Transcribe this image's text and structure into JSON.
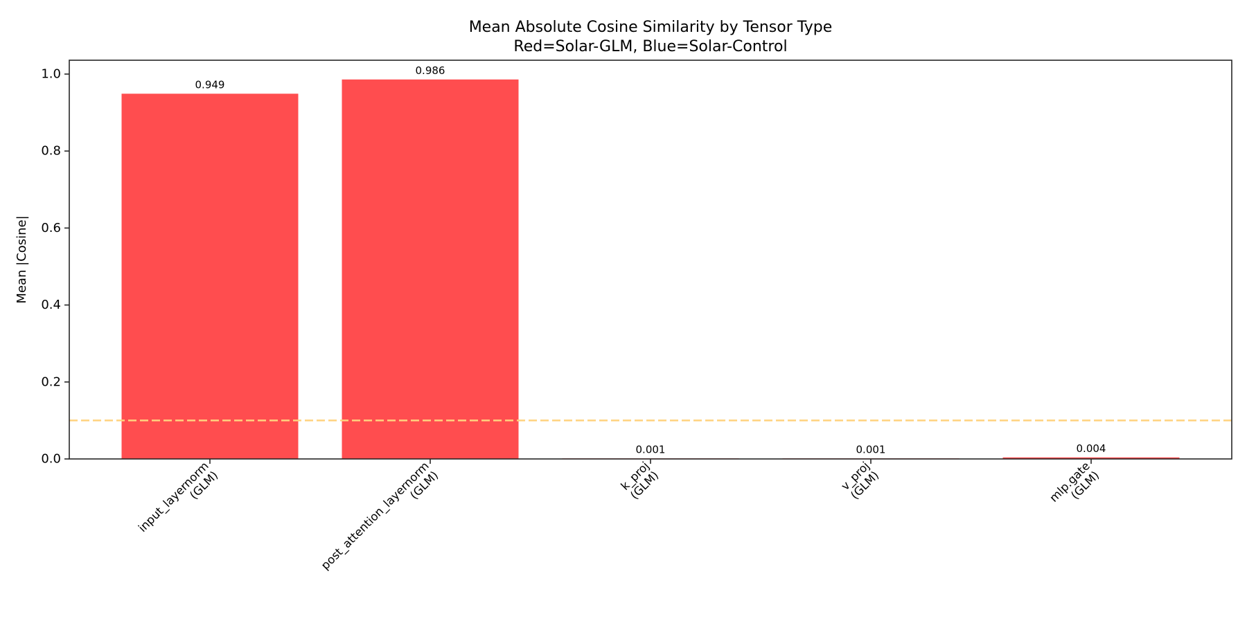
{
  "chart_data": {
    "type": "bar",
    "title": "Mean Absolute Cosine Similarity by Tensor Type",
    "subtitle": "Red=Solar-GLM, Blue=Solar-Control",
    "xlabel": "",
    "ylabel": "Mean |Cosine|",
    "categories": [
      "input_layernorm\n(GLM)",
      "post_attention_layernorm\n(GLM)",
      "k_proj\n(GLM)",
      "v_proj\n(GLM)",
      "mlp.gate\n(GLM)"
    ],
    "values": [
      0.949,
      0.986,
      0.001,
      0.001,
      0.004
    ],
    "value_labels": [
      "0.949",
      "0.986",
      "0.001",
      "0.001",
      "0.004"
    ],
    "series": [
      {
        "name": "Solar-GLM",
        "color": "#ff4d4f",
        "values": [
          0.949,
          0.986,
          0.001,
          0.001,
          0.004
        ]
      }
    ],
    "ylim": [
      0,
      1.036
    ],
    "yticks": [
      0.0,
      0.2,
      0.4,
      0.6,
      0.8,
      1.0
    ],
    "ytick_labels": [
      "0.0",
      "0.2",
      "0.4",
      "0.6",
      "0.8",
      "1.0"
    ],
    "reference_line": {
      "y": 0.1,
      "style": "dashed",
      "color": "#ffd27f"
    },
    "grid": false,
    "legend": null,
    "xtick_rotation": 45
  },
  "colors": {
    "bar": "#ff4d4f",
    "threshold": "#ffd27f",
    "spine": "#262626",
    "background": "#ffffff"
  }
}
